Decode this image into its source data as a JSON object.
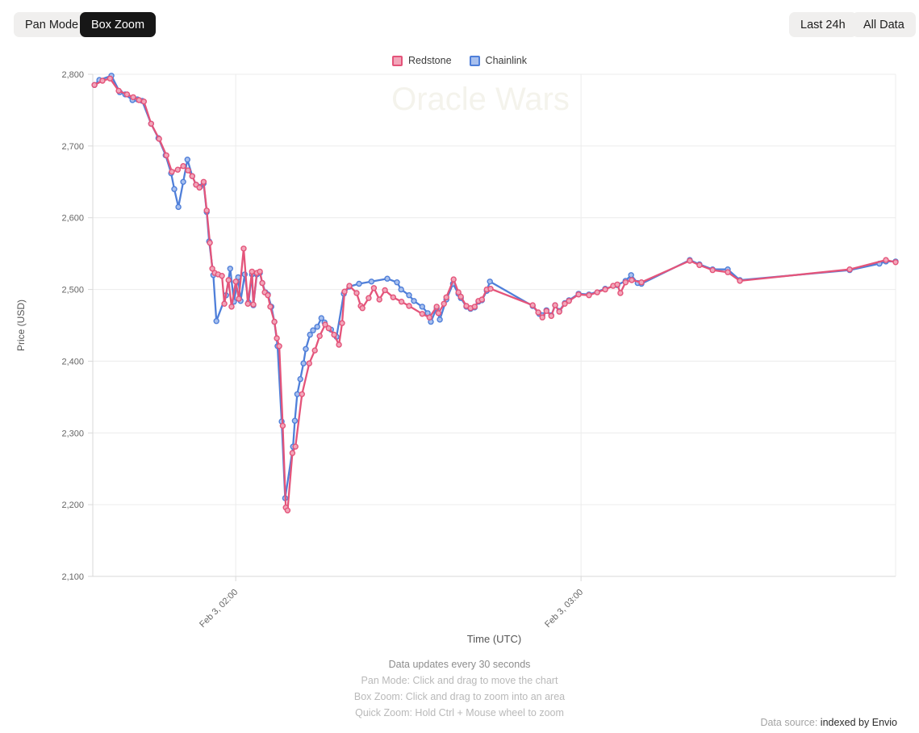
{
  "toolbar": {
    "pan_mode_label": "Pan Mode",
    "box_zoom_label": "Box Zoom",
    "last_24h_label": "Last 24h",
    "all_data_label": "All Data"
  },
  "legend": {
    "items": [
      {
        "label": "Redstone",
        "color": "#e4547a",
        "fill": "#f2a6ba"
      },
      {
        "label": "Chainlink",
        "color": "#4f7fd9",
        "fill": "#a8c0ee"
      }
    ]
  },
  "watermark": "Oracle Wars",
  "footer": {
    "update_note": "Data updates every 30 seconds",
    "hints": [
      "Pan Mode: Click and drag to move the chart",
      "Box Zoom: Click and drag to zoom into an area",
      "Quick Zoom: Hold Ctrl + Mouse wheel to zoom"
    ],
    "datasource_label": "Data source:",
    "datasource_value": "indexed by Envio"
  },
  "chart_data": {
    "type": "line",
    "title": "Oracle Wars",
    "xlabel": "Time (UTC)",
    "ylabel": "Price (USD)",
    "xlim": [
      1.586,
      3.911
    ],
    "ylim": [
      2100,
      2800
    ],
    "grid": true,
    "legend_position": "top-center",
    "watermark_color": "#f4f3ec",
    "yticks": [
      {
        "v": 2100,
        "label": "2,100"
      },
      {
        "v": 2200,
        "label": "2,200"
      },
      {
        "v": 2300,
        "label": "2,300"
      },
      {
        "v": 2400,
        "label": "2,400"
      },
      {
        "v": 2500,
        "label": "2,500"
      },
      {
        "v": 2600,
        "label": "2,600"
      },
      {
        "v": 2700,
        "label": "2,700"
      },
      {
        "v": 2800,
        "label": "2,800"
      }
    ],
    "xticks": [
      {
        "v": 2.0,
        "label": "Feb 3, 02:00"
      },
      {
        "v": 3.0,
        "label": "Feb 3, 03:00"
      }
    ],
    "series": [
      {
        "name": "Chainlink",
        "color": "#4f7fd9",
        "marker_fill": "#a8c0ee",
        "points": [
          [
            1.591,
            2785
          ],
          [
            1.605,
            2792
          ],
          [
            1.64,
            2798
          ],
          [
            1.664,
            2775
          ],
          [
            1.68,
            2772
          ],
          [
            1.701,
            2764
          ],
          [
            1.715,
            2765
          ],
          [
            1.729,
            2763
          ],
          [
            1.755,
            2731
          ],
          [
            1.776,
            2711
          ],
          [
            1.797,
            2687
          ],
          [
            1.813,
            2662
          ],
          [
            1.822,
            2640
          ],
          [
            1.834,
            2615
          ],
          [
            1.848,
            2650
          ],
          [
            1.86,
            2681
          ],
          [
            1.874,
            2658
          ],
          [
            1.885,
            2646
          ],
          [
            1.897,
            2643
          ],
          [
            1.907,
            2648
          ],
          [
            1.916,
            2608
          ],
          [
            1.923,
            2567
          ],
          [
            1.935,
            2520
          ],
          [
            1.944,
            2456
          ],
          [
            1.972,
            2492
          ],
          [
            1.984,
            2529
          ],
          [
            1.995,
            2483
          ],
          [
            2.007,
            2517
          ],
          [
            2.014,
            2484
          ],
          [
            2.026,
            2521
          ],
          [
            2.037,
            2482
          ],
          [
            2.047,
            2521
          ],
          [
            2.051,
            2478
          ],
          [
            2.061,
            2521
          ],
          [
            2.07,
            2523
          ],
          [
            2.077,
            2509
          ],
          [
            2.086,
            2496
          ],
          [
            2.093,
            2493
          ],
          [
            2.103,
            2476
          ],
          [
            2.112,
            2455
          ],
          [
            2.121,
            2421
          ],
          [
            2.133,
            2316
          ],
          [
            2.143,
            2209
          ],
          [
            2.166,
            2281
          ],
          [
            2.171,
            2317
          ],
          [
            2.178,
            2354
          ],
          [
            2.187,
            2375
          ],
          [
            2.196,
            2397
          ],
          [
            2.203,
            2417
          ],
          [
            2.215,
            2437
          ],
          [
            2.224,
            2443
          ],
          [
            2.236,
            2448
          ],
          [
            2.248,
            2460
          ],
          [
            2.257,
            2454
          ],
          [
            2.276,
            2444
          ],
          [
            2.292,
            2434
          ],
          [
            2.313,
            2494
          ],
          [
            2.329,
            2504
          ],
          [
            2.357,
            2508
          ],
          [
            2.393,
            2511
          ],
          [
            2.439,
            2515
          ],
          [
            2.467,
            2510
          ],
          [
            2.479,
            2500
          ],
          [
            2.502,
            2492
          ],
          [
            2.516,
            2484
          ],
          [
            2.54,
            2476
          ],
          [
            2.556,
            2467
          ],
          [
            2.565,
            2455
          ],
          [
            2.582,
            2474
          ],
          [
            2.591,
            2458
          ],
          [
            2.61,
            2486
          ],
          [
            2.629,
            2508
          ],
          [
            2.645,
            2494
          ],
          [
            2.652,
            2488
          ],
          [
            2.668,
            2476
          ],
          [
            2.68,
            2473
          ],
          [
            2.692,
            2475
          ],
          [
            2.703,
            2483
          ],
          [
            2.713,
            2485
          ],
          [
            2.727,
            2498
          ],
          [
            2.736,
            2511
          ],
          [
            2.86,
            2477
          ],
          [
            2.879,
            2466
          ],
          [
            2.888,
            2464
          ],
          [
            2.9,
            2471
          ],
          [
            2.914,
            2464
          ],
          [
            2.925,
            2478
          ],
          [
            2.937,
            2470
          ],
          [
            2.953,
            2481
          ],
          [
            2.965,
            2485
          ],
          [
            2.993,
            2494
          ],
          [
            3.023,
            2493
          ],
          [
            3.07,
            2501
          ],
          [
            3.105,
            2506
          ],
          [
            3.129,
            2512
          ],
          [
            3.145,
            2520
          ],
          [
            3.164,
            2509
          ],
          [
            3.175,
            2508
          ],
          [
            3.315,
            2541
          ],
          [
            3.343,
            2535
          ],
          [
            3.381,
            2528
          ],
          [
            3.425,
            2528
          ],
          [
            3.46,
            2513
          ],
          [
            3.778,
            2527
          ],
          [
            3.864,
            2536
          ],
          [
            3.883,
            2539
          ],
          [
            3.911,
            2539
          ]
        ]
      },
      {
        "name": "Redstone",
        "color": "#e4547a",
        "marker_fill": "#f2a6ba",
        "points": [
          [
            1.591,
            2785
          ],
          [
            1.614,
            2791
          ],
          [
            1.636,
            2794
          ],
          [
            1.661,
            2777
          ],
          [
            1.685,
            2772
          ],
          [
            1.703,
            2768
          ],
          [
            1.72,
            2764
          ],
          [
            1.734,
            2762
          ],
          [
            1.755,
            2731
          ],
          [
            1.778,
            2710
          ],
          [
            1.799,
            2687
          ],
          [
            1.815,
            2664
          ],
          [
            1.832,
            2667
          ],
          [
            1.848,
            2672
          ],
          [
            1.862,
            2666
          ],
          [
            1.874,
            2658
          ],
          [
            1.885,
            2646
          ],
          [
            1.895,
            2642
          ],
          [
            1.907,
            2650
          ],
          [
            1.916,
            2610
          ],
          [
            1.925,
            2565
          ],
          [
            1.932,
            2529
          ],
          [
            1.939,
            2523
          ],
          [
            1.949,
            2521
          ],
          [
            1.96,
            2519
          ],
          [
            1.967,
            2480
          ],
          [
            1.979,
            2513
          ],
          [
            1.988,
            2476
          ],
          [
            2.0,
            2511
          ],
          [
            2.009,
            2487
          ],
          [
            2.023,
            2557
          ],
          [
            2.035,
            2480
          ],
          [
            2.047,
            2525
          ],
          [
            2.051,
            2479
          ],
          [
            2.061,
            2523
          ],
          [
            2.07,
            2525
          ],
          [
            2.077,
            2509
          ],
          [
            2.084,
            2496
          ],
          [
            2.093,
            2492
          ],
          [
            2.1,
            2476
          ],
          [
            2.112,
            2455
          ],
          [
            2.119,
            2432
          ],
          [
            2.126,
            2421
          ],
          [
            2.136,
            2310
          ],
          [
            2.145,
            2196
          ],
          [
            2.15,
            2192
          ],
          [
            2.164,
            2272
          ],
          [
            2.173,
            2281
          ],
          [
            2.192,
            2354
          ],
          [
            2.213,
            2397
          ],
          [
            2.229,
            2415
          ],
          [
            2.243,
            2435
          ],
          [
            2.259,
            2451
          ],
          [
            2.269,
            2446
          ],
          [
            2.285,
            2437
          ],
          [
            2.299,
            2423
          ],
          [
            2.308,
            2453
          ],
          [
            2.315,
            2497
          ],
          [
            2.329,
            2505
          ],
          [
            2.35,
            2495
          ],
          [
            2.362,
            2477
          ],
          [
            2.367,
            2474
          ],
          [
            2.385,
            2488
          ],
          [
            2.4,
            2502
          ],
          [
            2.416,
            2486
          ],
          [
            2.432,
            2499
          ],
          [
            2.456,
            2489
          ],
          [
            2.48,
            2483
          ],
          [
            2.502,
            2477
          ],
          [
            2.54,
            2466
          ],
          [
            2.561,
            2461
          ],
          [
            2.582,
            2476
          ],
          [
            2.587,
            2467
          ],
          [
            2.603,
            2480
          ],
          [
            2.61,
            2489
          ],
          [
            2.631,
            2514
          ],
          [
            2.645,
            2496
          ],
          [
            2.652,
            2490
          ],
          [
            2.668,
            2477
          ],
          [
            2.68,
            2474
          ],
          [
            2.692,
            2476
          ],
          [
            2.703,
            2484
          ],
          [
            2.713,
            2486
          ],
          [
            2.727,
            2500
          ],
          [
            2.738,
            2501
          ],
          [
            2.86,
            2478
          ],
          [
            2.876,
            2468
          ],
          [
            2.888,
            2461
          ],
          [
            2.9,
            2470
          ],
          [
            2.914,
            2463
          ],
          [
            2.925,
            2478
          ],
          [
            2.937,
            2469
          ],
          [
            2.953,
            2480
          ],
          [
            2.965,
            2484
          ],
          [
            2.993,
            2493
          ],
          [
            3.023,
            2492
          ],
          [
            3.047,
            2496
          ],
          [
            3.07,
            2500
          ],
          [
            3.093,
            2505
          ],
          [
            3.105,
            2507
          ],
          [
            3.114,
            2495
          ],
          [
            3.129,
            2510
          ],
          [
            3.147,
            2513
          ],
          [
            3.175,
            2510
          ],
          [
            3.315,
            2540
          ],
          [
            3.343,
            2534
          ],
          [
            3.381,
            2527
          ],
          [
            3.425,
            2524
          ],
          [
            3.46,
            2512
          ],
          [
            3.778,
            2528
          ],
          [
            3.883,
            2541
          ],
          [
            3.911,
            2538
          ]
        ]
      }
    ]
  }
}
